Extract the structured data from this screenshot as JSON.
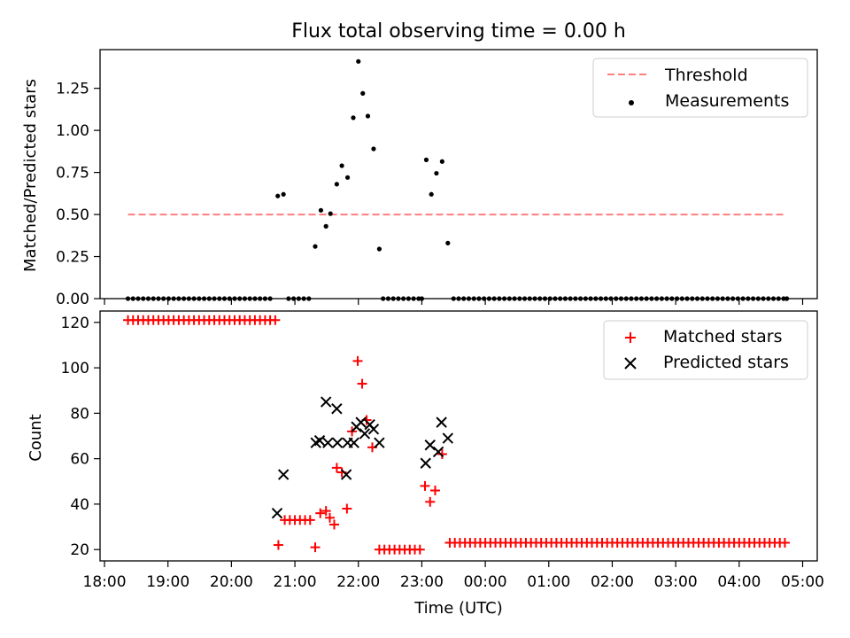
{
  "figure_title": "Flux total observing time = 0.00 h",
  "colors": {
    "threshold": "#ff7f7f",
    "measurement": "#000000",
    "matched": "#ff0000",
    "predicted": "#000000"
  },
  "chart_data": [
    {
      "type": "scatter",
      "title": "Flux total observing time = 0.00 h",
      "xlabel": "",
      "ylabel": "Matched/Predicted stars",
      "xlim": [
        17.93,
        29.23
      ],
      "ylim": [
        0,
        1.48
      ],
      "yticks": [
        0.0,
        0.25,
        0.5,
        0.75,
        1.0,
        1.25
      ],
      "ytick_labels": [
        "0.00",
        "0.25",
        "0.50",
        "0.75",
        "1.00",
        "1.25"
      ],
      "xticks": [
        18,
        19,
        20,
        21,
        22,
        23,
        24,
        25,
        26,
        27,
        28,
        29
      ],
      "legend": {
        "position": "top-right",
        "entries": [
          "Threshold",
          "Measurements"
        ]
      },
      "series": [
        {
          "name": "Threshold",
          "kind": "line",
          "style": "dashed",
          "x": [
            18.37,
            28.75
          ],
          "y": [
            0.5,
            0.5
          ]
        },
        {
          "name": "Measurements",
          "kind": "dots",
          "points": [
            [
              18.37,
              0
            ],
            [
              18.45,
              0
            ],
            [
              18.53,
              0
            ],
            [
              18.61,
              0
            ],
            [
              18.69,
              0
            ],
            [
              18.77,
              0
            ],
            [
              18.85,
              0
            ],
            [
              18.93,
              0
            ],
            [
              19.01,
              0
            ],
            [
              19.09,
              0
            ],
            [
              19.17,
              0
            ],
            [
              19.25,
              0
            ],
            [
              19.33,
              0
            ],
            [
              19.41,
              0
            ],
            [
              19.49,
              0
            ],
            [
              19.57,
              0
            ],
            [
              19.65,
              0
            ],
            [
              19.73,
              0
            ],
            [
              19.81,
              0
            ],
            [
              19.89,
              0
            ],
            [
              19.97,
              0
            ],
            [
              20.05,
              0
            ],
            [
              20.13,
              0
            ],
            [
              20.21,
              0
            ],
            [
              20.29,
              0
            ],
            [
              20.37,
              0
            ],
            [
              20.45,
              0
            ],
            [
              20.53,
              0
            ],
            [
              20.61,
              0
            ],
            [
              20.73,
              0.61
            ],
            [
              20.82,
              0.62
            ],
            [
              20.9,
              0
            ],
            [
              20.98,
              0
            ],
            [
              21.06,
              0
            ],
            [
              21.14,
              0
            ],
            [
              21.22,
              0
            ],
            [
              21.32,
              0.31
            ],
            [
              21.41,
              0.525
            ],
            [
              21.49,
              0.43
            ],
            [
              21.56,
              0.505
            ],
            [
              21.66,
              0.68
            ],
            [
              21.74,
              0.79
            ],
            [
              21.83,
              0.72
            ],
            [
              21.92,
              1.075
            ],
            [
              22.0,
              1.41
            ],
            [
              22.07,
              1.22
            ],
            [
              22.15,
              1.085
            ],
            [
              22.24,
              0.89
            ],
            [
              22.33,
              0.295
            ],
            [
              22.39,
              0
            ],
            [
              22.47,
              0
            ],
            [
              22.55,
              0
            ],
            [
              22.63,
              0
            ],
            [
              22.71,
              0
            ],
            [
              22.79,
              0
            ],
            [
              22.87,
              0
            ],
            [
              22.95,
              0
            ],
            [
              23.0,
              0
            ],
            [
              23.07,
              0.825
            ],
            [
              23.15,
              0.62
            ],
            [
              23.23,
              0.745
            ],
            [
              23.32,
              0.815
            ],
            [
              23.41,
              0.33
            ],
            [
              23.5,
              0
            ],
            [
              23.58,
              0
            ],
            [
              23.66,
              0
            ],
            [
              23.74,
              0
            ],
            [
              23.82,
              0
            ],
            [
              23.9,
              0
            ],
            [
              23.98,
              0
            ],
            [
              24.06,
              0
            ],
            [
              24.14,
              0
            ],
            [
              24.22,
              0
            ],
            [
              24.3,
              0
            ],
            [
              24.38,
              0
            ],
            [
              24.46,
              0
            ],
            [
              24.54,
              0
            ],
            [
              24.62,
              0
            ],
            [
              24.7,
              0
            ],
            [
              24.78,
              0
            ],
            [
              24.86,
              0
            ],
            [
              24.94,
              0
            ],
            [
              25.02,
              0
            ],
            [
              25.1,
              0
            ],
            [
              25.18,
              0
            ],
            [
              25.26,
              0
            ],
            [
              25.34,
              0
            ],
            [
              25.42,
              0
            ],
            [
              25.5,
              0
            ],
            [
              25.58,
              0
            ],
            [
              25.66,
              0
            ],
            [
              25.74,
              0
            ],
            [
              25.82,
              0
            ],
            [
              25.9,
              0
            ],
            [
              25.98,
              0
            ],
            [
              26.06,
              0
            ],
            [
              26.14,
              0
            ],
            [
              26.22,
              0
            ],
            [
              26.3,
              0
            ],
            [
              26.38,
              0
            ],
            [
              26.46,
              0
            ],
            [
              26.54,
              0
            ],
            [
              26.62,
              0
            ],
            [
              26.7,
              0
            ],
            [
              26.78,
              0
            ],
            [
              26.86,
              0
            ],
            [
              26.94,
              0
            ],
            [
              27.02,
              0
            ],
            [
              27.1,
              0
            ],
            [
              27.18,
              0
            ],
            [
              27.26,
              0
            ],
            [
              27.34,
              0
            ],
            [
              27.42,
              0
            ],
            [
              27.5,
              0
            ],
            [
              27.58,
              0
            ],
            [
              27.66,
              0
            ],
            [
              27.74,
              0
            ],
            [
              27.82,
              0
            ],
            [
              27.9,
              0
            ],
            [
              27.98,
              0
            ],
            [
              28.06,
              0
            ],
            [
              28.14,
              0
            ],
            [
              28.22,
              0
            ],
            [
              28.3,
              0
            ],
            [
              28.38,
              0
            ],
            [
              28.46,
              0
            ],
            [
              28.54,
              0
            ],
            [
              28.62,
              0
            ],
            [
              28.7,
              0
            ],
            [
              28.75,
              0
            ]
          ]
        }
      ]
    },
    {
      "type": "scatter",
      "title": "",
      "xlabel": "Time (UTC)",
      "ylabel": "Count",
      "xlim": [
        17.93,
        29.23
      ],
      "ylim": [
        15,
        125
      ],
      "yticks": [
        20,
        40,
        60,
        80,
        100,
        120
      ],
      "ytick_labels": [
        "20",
        "40",
        "60",
        "80",
        "100",
        "120"
      ],
      "xticks": [
        18,
        19,
        20,
        21,
        22,
        23,
        24,
        25,
        26,
        27,
        28,
        29
      ],
      "xtick_labels": [
        "18:00",
        "19:00",
        "20:00",
        "21:00",
        "22:00",
        "23:00",
        "00:00",
        "01:00",
        "02:00",
        "03:00",
        "04:00",
        "05:00"
      ],
      "legend": {
        "position": "top-right",
        "entries": [
          "Matched stars",
          "Predicted stars"
        ]
      },
      "series": [
        {
          "name": "Matched stars",
          "marker": "plus",
          "segments": [
            {
              "from": 18.37,
              "to": 20.69,
              "step": 0.08,
              "y": 121
            },
            {
              "from": 20.84,
              "to": 21.24,
              "step": 0.08,
              "y": 33
            },
            {
              "from": 22.33,
              "to": 23.01,
              "step": 0.08,
              "y": 20
            },
            {
              "from": 23.44,
              "to": 28.78,
              "step": 0.08,
              "y": 23
            }
          ],
          "points": [
            [
              20.74,
              22
            ],
            [
              21.32,
              21
            ],
            [
              21.4,
              36
            ],
            [
              21.49,
              37
            ],
            [
              21.55,
              34
            ],
            [
              21.62,
              31
            ],
            [
              21.66,
              56
            ],
            [
              21.74,
              54
            ],
            [
              21.82,
              38
            ],
            [
              21.9,
              72
            ],
            [
              21.99,
              103
            ],
            [
              22.06,
              93
            ],
            [
              22.13,
              77
            ],
            [
              22.22,
              65
            ],
            [
              23.05,
              48
            ],
            [
              23.13,
              41
            ],
            [
              23.21,
              46
            ],
            [
              23.32,
              62
            ]
          ]
        },
        {
          "name": "Predicted stars",
          "marker": "x",
          "points": [
            [
              20.72,
              36
            ],
            [
              20.82,
              53
            ],
            [
              21.33,
              67
            ],
            [
              21.39,
              68
            ],
            [
              21.49,
              85
            ],
            [
              21.52,
              67
            ],
            [
              21.66,
              82
            ],
            [
              21.67,
              67
            ],
            [
              21.81,
              53
            ],
            [
              21.83,
              67
            ],
            [
              21.93,
              67
            ],
            [
              21.97,
              74
            ],
            [
              22.04,
              76
            ],
            [
              22.1,
              71
            ],
            [
              22.18,
              75
            ],
            [
              22.24,
              73
            ],
            [
              22.33,
              67
            ],
            [
              23.06,
              58
            ],
            [
              23.13,
              66
            ],
            [
              23.26,
              63
            ],
            [
              23.31,
              76
            ],
            [
              23.41,
              69
            ]
          ]
        }
      ]
    }
  ]
}
